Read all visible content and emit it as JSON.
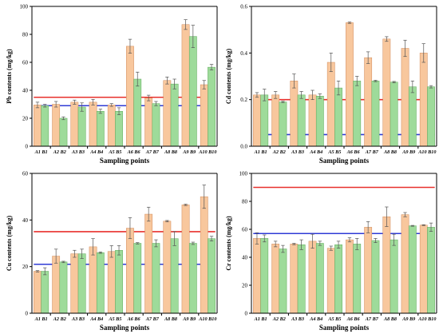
{
  "colors": {
    "bar_a": "#f8c79d",
    "bar_a_stroke": "#d08a5a",
    "bar_b": "#9edb9a",
    "bar_b_stroke": "#5ea85a",
    "line_red": "#e8312d",
    "line_blue": "#2f3bd6"
  },
  "chart_data": [
    {
      "type": "bar",
      "categories": [
        "A1 B1",
        "A2 B2",
        "A3 B3",
        "A4 B4",
        "A5 B5",
        "A6 B6",
        "A7 B7",
        "A8 B8",
        "A9 B9",
        "A10 B10"
      ],
      "series": [
        {
          "values": [
            29.5,
            30,
            31.5,
            31.5,
            29.5,
            71.5,
            34.5,
            47,
            87,
            44
          ],
          "errors": [
            2,
            2,
            1.5,
            2,
            1,
            5,
            2,
            2.5,
            3.5,
            3
          ]
        },
        {
          "values": [
            29,
            20,
            28,
            25,
            25,
            48,
            30.5,
            44.5,
            78.5,
            56.5
          ],
          "errors": [
            1,
            1,
            3,
            1.5,
            2.5,
            5,
            1.5,
            3.5,
            8,
            2
          ]
        }
      ],
      "ref_lines": [
        35,
        29
      ],
      "xlabel": "Sampling points",
      "ylabel": "Pb contents (mg/kg)",
      "ylim": [
        0,
        100
      ],
      "yticks": [
        0,
        20,
        40,
        60,
        80,
        100
      ],
      "ytick_labels": [
        "0",
        "20",
        "40",
        "60",
        "80",
        "100"
      ]
    },
    {
      "type": "bar",
      "categories": [
        "A1 B1",
        "A2 B2",
        "A3 B3",
        "A4 B4",
        "A5 B5",
        "A6 B6",
        "A7 B7",
        "A8 B8",
        "A9 B9",
        "A10 B10"
      ],
      "series": [
        {
          "values": [
            0.22,
            0.22,
            0.28,
            0.22,
            0.36,
            0.53,
            0.38,
            0.46,
            0.42,
            0.4
          ],
          "errors": [
            0.01,
            0.015,
            0.03,
            0.02,
            0.04,
            0.003,
            0.025,
            0.01,
            0.035,
            0.04
          ]
        },
        {
          "values": [
            0.22,
            0.19,
            0.22,
            0.215,
            0.25,
            0.28,
            0.28,
            0.275,
            0.255,
            0.255
          ],
          "errors": [
            0.025,
            0.003,
            0.015,
            0.01,
            0.03,
            0.02,
            0.003,
            0.003,
            0.025,
            0.005
          ]
        }
      ],
      "ref_lines": [
        0.2,
        0.05
      ],
      "xlabel": "Sampling points",
      "ylabel": "Cd contents (mg/kg)",
      "ylim": [
        0,
        0.6
      ],
      "yticks": [
        0,
        0.2,
        0.4,
        0.6
      ],
      "ytick_labels": [
        "0.0",
        "0.2",
        "0.4",
        "0.6"
      ]
    },
    {
      "type": "bar",
      "categories": [
        "A1 B1",
        "A2 B2",
        "A3 B3",
        "A4 B4",
        "A5 B5",
        "A6 B6",
        "A7 B7",
        "A8 B8",
        "A9 B9",
        "A10 B10"
      ],
      "series": [
        {
          "values": [
            18,
            24.5,
            25.5,
            28.5,
            26.5,
            36.5,
            42.5,
            39.5,
            46.5,
            50
          ],
          "errors": [
            0.3,
            3,
            1.5,
            3.5,
            2.5,
            4.5,
            3,
            0.3,
            0.3,
            5
          ]
        },
        {
          "values": [
            18,
            22,
            25.5,
            26,
            27,
            30,
            30,
            32,
            30,
            32
          ],
          "errors": [
            1.5,
            0.3,
            2,
            0.3,
            2,
            0.3,
            1.5,
            3,
            0.5,
            1
          ]
        }
      ],
      "ref_lines": [
        35,
        21
      ],
      "xlabel": "Sampling points",
      "ylabel": "Cu contents (mg/kg)",
      "ylim": [
        0,
        60
      ],
      "yticks": [
        0,
        20,
        40,
        60
      ],
      "ytick_labels": [
        "0",
        "20",
        "40",
        "60"
      ]
    },
    {
      "type": "bar",
      "categories": [
        "A1 B1",
        "A2 B2",
        "A3 B3",
        "A4 B4",
        "A5 B5",
        "A6 B6",
        "A7 B7",
        "A8 B8",
        "A9 B9",
        "A10 B10"
      ],
      "series": [
        {
          "values": [
            53.5,
            49.5,
            49.5,
            51.5,
            46.5,
            52.5,
            61.5,
            69,
            70.5,
            63
          ],
          "errors": [
            4,
            2,
            0.5,
            5,
            1.5,
            1.5,
            4,
            7,
            1.5,
            0.3
          ]
        },
        {
          "values": [
            53.5,
            46,
            49,
            50,
            49,
            49.5,
            52,
            52.5,
            62.5,
            61.5
          ],
          "errors": [
            2.5,
            2.5,
            3.5,
            1.5,
            2.5,
            4,
            1.5,
            4,
            0.3,
            3
          ]
        }
      ],
      "ref_lines": [
        90,
        57
      ],
      "xlabel": "Sampling points",
      "ylabel": "Cr contents (mg/kg)",
      "ylim": [
        0,
        100
      ],
      "yticks": [
        0,
        20,
        40,
        60,
        80,
        100
      ],
      "ytick_labels": [
        "0",
        "20",
        "40",
        "60",
        "80",
        "100"
      ]
    }
  ]
}
